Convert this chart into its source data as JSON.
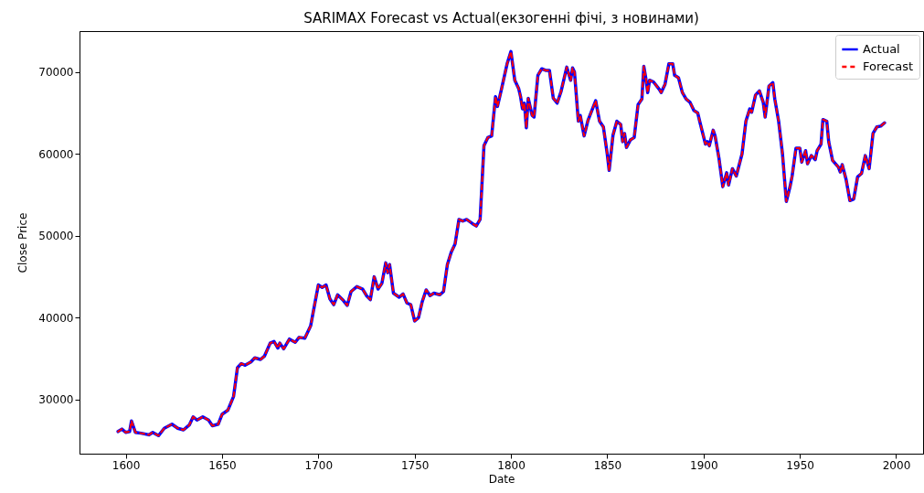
{
  "chart_data": {
    "type": "line",
    "title": "SARIMAX Forecast vs Actual(екзогенні фічі, з новинами)",
    "xlabel": "Date",
    "ylabel": "Close Price",
    "x": [
      1596,
      1598,
      1600,
      1602,
      1603,
      1605,
      1608,
      1612,
      1614,
      1617,
      1620,
      1624,
      1627,
      1630,
      1633,
      1635,
      1637,
      1640,
      1643,
      1645,
      1648,
      1650,
      1653,
      1656,
      1658,
      1660,
      1662,
      1665,
      1667,
      1670,
      1672,
      1675,
      1677,
      1679,
      1680,
      1682,
      1685,
      1688,
      1690,
      1693,
      1696,
      1698,
      1700,
      1702,
      1704,
      1706,
      1708,
      1710,
      1713,
      1715,
      1717,
      1720,
      1723,
      1725,
      1727,
      1729,
      1731,
      1733,
      1735,
      1736,
      1737,
      1739,
      1742,
      1744,
      1746,
      1748,
      1750,
      1752,
      1754,
      1756,
      1758,
      1760,
      1763,
      1765,
      1767,
      1769,
      1771,
      1773,
      1775,
      1777,
      1780,
      1782,
      1784,
      1786,
      1788,
      1790,
      1792,
      1793,
      1795,
      1798,
      1800,
      1802,
      1804,
      1805,
      1806,
      1807,
      1808,
      1809,
      1811,
      1812,
      1814,
      1816,
      1818,
      1820,
      1822,
      1824,
      1826,
      1829,
      1831,
      1832,
      1833,
      1835,
      1836,
      1838,
      1840,
      1842,
      1844,
      1846,
      1848,
      1850,
      1851,
      1853,
      1855,
      1857,
      1858,
      1859,
      1860,
      1862,
      1864,
      1866,
      1868,
      1869,
      1870,
      1871,
      1872,
      1874,
      1877,
      1878,
      1880,
      1882,
      1884,
      1885,
      1887,
      1889,
      1891,
      1893,
      1895,
      1897,
      1898,
      1901,
      1902,
      1903,
      1905,
      1906,
      1908,
      1910,
      1912,
      1913,
      1915,
      1917,
      1920,
      1922,
      1924,
      1925,
      1927,
      1929,
      1931,
      1932,
      1934,
      1936,
      1937,
      1939,
      1941,
      1943,
      1945,
      1946,
      1948,
      1950,
      1951,
      1953,
      1954,
      1956,
      1958,
      1959,
      1961,
      1962,
      1964,
      1965,
      1967,
      1970,
      1971,
      1972,
      1974,
      1976,
      1978,
      1980,
      1982,
      1984,
      1986,
      1988,
      1990,
      1992,
      1994
    ],
    "series": [
      {
        "name": "Actual",
        "color": "#0000ff",
        "line_style": "solid",
        "values": [
          26100,
          26400,
          26000,
          26100,
          27400,
          26000,
          25900,
          25700,
          26000,
          25600,
          26500,
          27000,
          26500,
          26300,
          26900,
          27900,
          27500,
          27900,
          27500,
          26800,
          27000,
          28200,
          28700,
          30400,
          33900,
          34400,
          34200,
          34600,
          35100,
          34900,
          35300,
          36900,
          37100,
          36300,
          36900,
          36200,
          37400,
          37000,
          37600,
          37500,
          39000,
          41500,
          44000,
          43700,
          44000,
          42300,
          41600,
          42800,
          42100,
          41500,
          43200,
          43800,
          43500,
          42700,
          42200,
          45000,
          43500,
          44200,
          46700,
          45500,
          46500,
          43000,
          42500,
          42900,
          41800,
          41600,
          39600,
          40000,
          42000,
          43400,
          42700,
          43000,
          42800,
          43200,
          46500,
          48000,
          49000,
          52000,
          51800,
          52000,
          51500,
          51200,
          52000,
          61000,
          62000,
          62200,
          67000,
          65800,
          67800,
          71000,
          72500,
          69000,
          68000,
          67000,
          65500,
          66200,
          63200,
          66800,
          64700,
          64500,
          69600,
          70400,
          70200,
          70200,
          66800,
          66200,
          67600,
          70600,
          69000,
          70500,
          70000,
          64000,
          64700,
          62200,
          64100,
          65300,
          66500,
          64000,
          63300,
          60000,
          58000,
          62300,
          64000,
          63600,
          61500,
          62500,
          60800,
          61700,
          62000,
          66000,
          66700,
          70700,
          69300,
          67500,
          69000,
          68800,
          67900,
          67500,
          68500,
          71000,
          71000,
          69600,
          69300,
          67500,
          66700,
          66300,
          65300,
          65000,
          64000,
          61200,
          61500,
          61000,
          62900,
          62200,
          59500,
          56000,
          57700,
          56200,
          58200,
          57300,
          60000,
          64000,
          65500,
          65100,
          67200,
          67700,
          66300,
          64500,
          68300,
          68700,
          66700,
          64000,
          60000,
          54200,
          56100,
          57300,
          60700,
          60700,
          59000,
          60400,
          58800,
          59800,
          59300,
          60400,
          61200,
          64200,
          64000,
          61500,
          59200,
          58400,
          57800,
          58700,
          56900,
          54300,
          54500,
          57200,
          57600,
          59800,
          58200,
          62500,
          63300,
          63400,
          63800
        ]
      },
      {
        "name": "Forecast",
        "color": "#ff0000",
        "line_style": "dashed",
        "values": [
          26100,
          26400,
          26000,
          26100,
          27400,
          26000,
          25900,
          25700,
          26000,
          25600,
          26500,
          27000,
          26500,
          26300,
          26900,
          27900,
          27500,
          27900,
          27500,
          26800,
          27000,
          28200,
          28700,
          30400,
          33900,
          34400,
          34200,
          34600,
          35100,
          34900,
          35300,
          36900,
          37100,
          36300,
          36900,
          36200,
          37400,
          37000,
          37600,
          37500,
          39000,
          41500,
          44000,
          43700,
          44000,
          42300,
          41600,
          42800,
          42100,
          41500,
          43200,
          43800,
          43500,
          42700,
          42200,
          45000,
          43500,
          44200,
          46700,
          45500,
          46500,
          43000,
          42500,
          42900,
          41800,
          41600,
          39600,
          40000,
          42000,
          43400,
          42700,
          43000,
          42800,
          43200,
          46500,
          48000,
          49000,
          52000,
          51800,
          52000,
          51500,
          51200,
          52000,
          61000,
          62000,
          62200,
          67000,
          65800,
          67800,
          71000,
          72500,
          69000,
          68000,
          67000,
          65500,
          66200,
          63200,
          66800,
          64700,
          64500,
          69600,
          70400,
          70200,
          70200,
          66800,
          66200,
          67600,
          70600,
          69000,
          70500,
          70000,
          64000,
          64700,
          62200,
          64100,
          65300,
          66500,
          64000,
          63300,
          60000,
          58000,
          62300,
          64000,
          63600,
          61500,
          62500,
          60800,
          61700,
          62000,
          66000,
          66700,
          70700,
          69300,
          67500,
          69000,
          68800,
          67900,
          67500,
          68500,
          71000,
          71000,
          69600,
          69300,
          67500,
          66700,
          66300,
          65300,
          65000,
          64000,
          61200,
          61500,
          61000,
          62900,
          62200,
          59500,
          56000,
          57700,
          56200,
          58200,
          57300,
          60000,
          64000,
          65500,
          65100,
          67200,
          67700,
          66300,
          64500,
          68300,
          68700,
          66700,
          64000,
          60000,
          54200,
          56100,
          57300,
          60700,
          60700,
          59000,
          60400,
          58800,
          59800,
          59300,
          60400,
          61200,
          64200,
          64000,
          61500,
          59200,
          58400,
          57800,
          58700,
          56900,
          54300,
          54500,
          57200,
          57600,
          59800,
          58200,
          62500,
          63300,
          63400,
          63800
        ]
      }
    ],
    "xlim": [
      1576,
      2014
    ],
    "xticks": [
      1600,
      1650,
      1700,
      1750,
      1800,
      1850,
      1900,
      1950,
      2000
    ],
    "ylim": [
      23400,
      75000
    ],
    "yticks": [
      30000,
      40000,
      50000,
      60000,
      70000
    ],
    "grid": false,
    "legend": "top right"
  }
}
